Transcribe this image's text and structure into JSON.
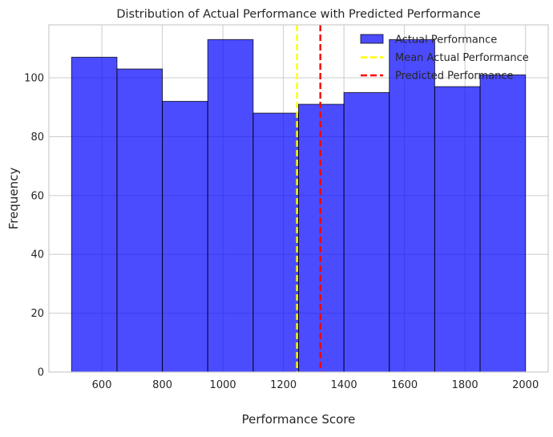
{
  "chart_data": {
    "type": "bar",
    "title": "Distribution of Actual Performance with Predicted Performance",
    "xlabel": "Performance Score",
    "ylabel": "Frequency",
    "xlim": [
      425,
      2075
    ],
    "ylim": [
      0,
      118
    ],
    "xticks": [
      600,
      800,
      1000,
      1200,
      1400,
      1600,
      1800,
      2000
    ],
    "yticks": [
      0,
      20,
      40,
      60,
      80,
      100
    ],
    "bins": [
      {
        "x0": 500,
        "x1": 650,
        "count": 107
      },
      {
        "x0": 650,
        "x1": 800,
        "count": 103
      },
      {
        "x0": 800,
        "x1": 950,
        "count": 92
      },
      {
        "x0": 950,
        "x1": 1100,
        "count": 113
      },
      {
        "x0": 1100,
        "x1": 1250,
        "count": 88
      },
      {
        "x0": 1250,
        "x1": 1400,
        "count": 91
      },
      {
        "x0": 1400,
        "x1": 1550,
        "count": 95
      },
      {
        "x0": 1550,
        "x1": 1700,
        "count": 113
      },
      {
        "x0": 1700,
        "x1": 1850,
        "count": 97
      },
      {
        "x0": 1850,
        "x1": 2000,
        "count": 101
      }
    ],
    "bar_color": "#0000ff",
    "bar_alpha": 0.7,
    "bar_edge_color": "#000000",
    "vlines": [
      {
        "name": "Mean Actual Performance",
        "x": 1245,
        "color": "#ffff00",
        "style": "dashed"
      },
      {
        "name": "Predicted Performance",
        "x": 1322,
        "color": "#ff0000",
        "style": "dashed"
      }
    ],
    "legend": {
      "position": "top-right",
      "entries": [
        {
          "label": "Actual Performance",
          "kind": "patch",
          "color": "#0000ff"
        },
        {
          "label": "Mean Actual Performance",
          "kind": "dashed-line",
          "color": "#ffff00"
        },
        {
          "label": "Predicted Performance",
          "kind": "dashed-line",
          "color": "#ff0000"
        }
      ]
    },
    "grid": true
  }
}
